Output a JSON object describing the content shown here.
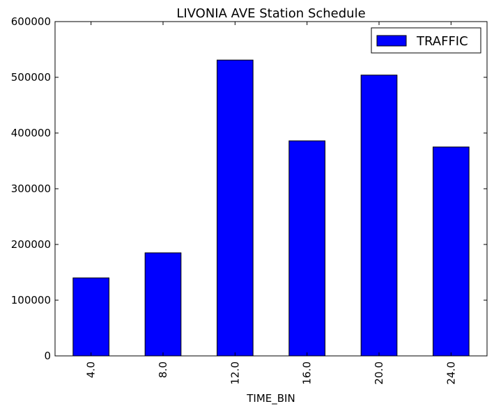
{
  "chart_data": {
    "type": "bar",
    "title": "LIVONIA AVE Station Schedule",
    "xlabel": "TIME_BIN",
    "ylabel": "",
    "categories": [
      "4.0",
      "8.0",
      "12.0",
      "16.0",
      "20.0",
      "24.0"
    ],
    "series": [
      {
        "name": "TRAFFIC",
        "values": [
          140000,
          185000,
          531000,
          386000,
          504000,
          375000
        ],
        "color": "#0000ff"
      }
    ],
    "ylim": [
      0,
      600000
    ],
    "yticks": [
      "0",
      "100000",
      "200000",
      "300000",
      "400000",
      "500000",
      "600000"
    ],
    "grid": false,
    "legend_position": "top-right"
  }
}
